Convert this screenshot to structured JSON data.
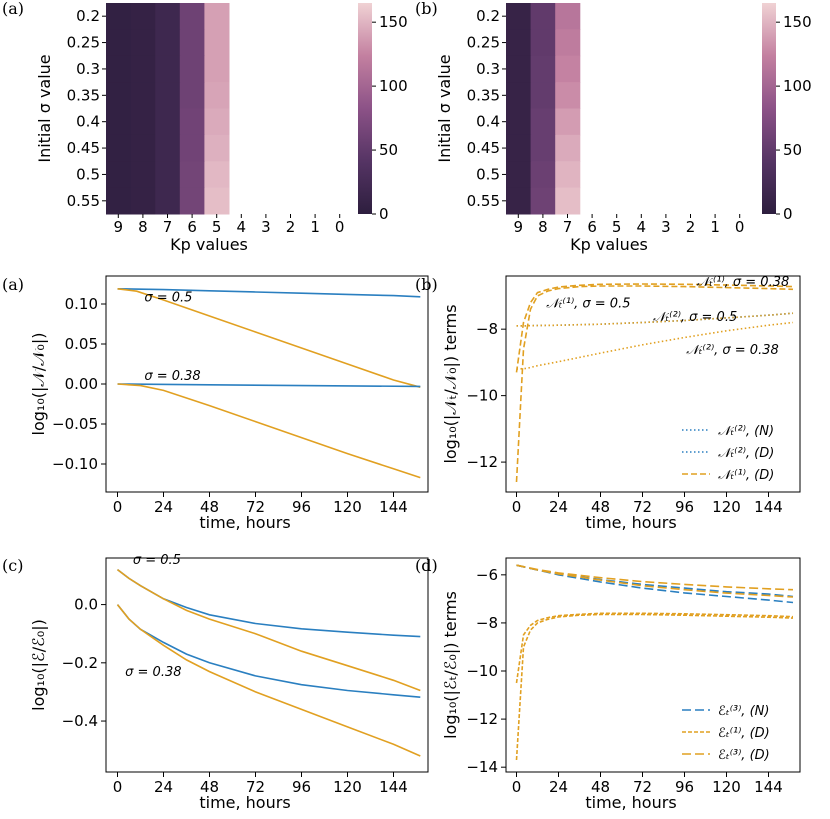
{
  "colors": {
    "blue": "#2a7fc0",
    "orange": "#e1a021"
  },
  "chart_data": [
    {
      "id": "ha",
      "type": "heatmap",
      "panel_label": "(a)",
      "xlabel": "Kp values",
      "ylabel": "Initial σ value",
      "x_categories": [
        "9",
        "8",
        "7",
        "6",
        "5",
        "4",
        "3",
        "2",
        "1",
        "0"
      ],
      "y_categories": [
        "0.2",
        "0.25",
        "0.3",
        "0.35",
        "0.4",
        "0.45",
        "0.5",
        "0.55"
      ],
      "values": [
        [
          5,
          8,
          18,
          60,
          140,
          null,
          null,
          null,
          null,
          null
        ],
        [
          5,
          8,
          18,
          60,
          140,
          null,
          null,
          null,
          null,
          null
        ],
        [
          5,
          8,
          18,
          60,
          140,
          null,
          null,
          null,
          null,
          null
        ],
        [
          5,
          8,
          18,
          60,
          142,
          null,
          null,
          null,
          null,
          null
        ],
        [
          5,
          8,
          18,
          62,
          145,
          null,
          null,
          null,
          null,
          null
        ],
        [
          5,
          8,
          18,
          62,
          148,
          null,
          null,
          null,
          null,
          null
        ],
        [
          5,
          8,
          18,
          64,
          152,
          null,
          null,
          null,
          null,
          null
        ],
        [
          5,
          8,
          18,
          64,
          155,
          null,
          null,
          null,
          null,
          null
        ]
      ],
      "colorbar_ticks": [
        "0",
        "50",
        "100",
        "150"
      ],
      "vmin": 0,
      "vmax": 165
    },
    {
      "id": "hb",
      "type": "heatmap",
      "panel_label": "(b)",
      "xlabel": "Kp values",
      "ylabel": "Initial σ value",
      "x_categories": [
        "9",
        "8",
        "7",
        "6",
        "5",
        "4",
        "3",
        "2",
        "1",
        "0"
      ],
      "y_categories": [
        "0.2",
        "0.25",
        "0.3",
        "0.35",
        "0.4",
        "0.45",
        "0.5",
        "0.55"
      ],
      "values": [
        [
          10,
          50,
          115,
          null,
          null,
          null,
          null,
          null,
          null,
          null
        ],
        [
          10,
          50,
          120,
          null,
          null,
          null,
          null,
          null,
          null,
          null
        ],
        [
          10,
          52,
          125,
          null,
          null,
          null,
          null,
          null,
          null,
          null
        ],
        [
          10,
          52,
          130,
          null,
          null,
          null,
          null,
          null,
          null,
          null
        ],
        [
          10,
          55,
          138,
          null,
          null,
          null,
          null,
          null,
          null,
          null
        ],
        [
          10,
          55,
          145,
          null,
          null,
          null,
          null,
          null,
          null,
          null
        ],
        [
          10,
          58,
          150,
          null,
          null,
          null,
          null,
          null,
          null,
          null
        ],
        [
          10,
          60,
          155,
          null,
          null,
          null,
          null,
          null,
          null,
          null
        ]
      ],
      "colorbar_ticks": [
        "0",
        "50",
        "100",
        "150"
      ],
      "vmin": 0,
      "vmax": 165
    },
    {
      "id": "la",
      "type": "line",
      "panel_label": "(a)",
      "xlabel": "time, hours",
      "ylabel": "log₁₀(|𝒩/𝒩₀|)",
      "xlim": [
        -6,
        162
      ],
      "ylim": [
        -0.135,
        0.135
      ],
      "xticks": [
        0,
        24,
        48,
        72,
        96,
        120,
        144
      ],
      "yticks": [
        0.1,
        0.05,
        0.0,
        -0.05,
        -0.1
      ],
      "ytick_labels": [
        "0.10",
        "0.05",
        "0.00",
        "−0.05",
        "−0.10"
      ],
      "annotations": [
        {
          "text": "σ = 0.5",
          "x": 14,
          "y": 0.103
        },
        {
          "text": "σ = 0.38",
          "x": 14,
          "y": 0.005
        }
      ],
      "series": [
        {
          "name": "blue σ=0.5",
          "color": "blue",
          "dash": "",
          "x": [
            0,
            24,
            48,
            72,
            96,
            120,
            144,
            158
          ],
          "y": [
            0.119,
            0.118,
            0.1165,
            0.115,
            0.1135,
            0.112,
            0.1105,
            0.109
          ]
        },
        {
          "name": "orange σ=0.5",
          "color": "orange",
          "dash": "",
          "x": [
            0,
            10,
            24,
            48,
            72,
            96,
            120,
            144,
            158
          ],
          "y": [
            0.119,
            0.116,
            0.105,
            0.085,
            0.065,
            0.045,
            0.025,
            0.005,
            -0.004
          ]
        },
        {
          "name": "blue σ=0.38",
          "color": "blue",
          "dash": "",
          "x": [
            0,
            48,
            96,
            158
          ],
          "y": [
            0.0,
            -0.001,
            -0.002,
            -0.003
          ]
        },
        {
          "name": "orange σ=0.38",
          "color": "orange",
          "dash": "",
          "x": [
            0,
            12,
            24,
            48,
            72,
            96,
            120,
            144,
            158
          ],
          "y": [
            0.0,
            -0.002,
            -0.008,
            -0.027,
            -0.047,
            -0.067,
            -0.087,
            -0.106,
            -0.117
          ]
        }
      ]
    },
    {
      "id": "lb",
      "type": "line",
      "panel_label": "(b)",
      "xlabel": "time, hours",
      "ylabel": "log₁₀(|𝒩ₜ/𝒩₀|) terms",
      "xlim": [
        -6,
        162
      ],
      "ylim": [
        -12.9,
        -6.4
      ],
      "xticks": [
        0,
        24,
        48,
        72,
        96,
        120,
        144
      ],
      "yticks": [
        -8,
        -10,
        -12
      ],
      "ytick_labels": [
        "−8",
        "−10",
        "−12"
      ],
      "annotations": [
        {
          "text": "𝒩ₜ⁽¹⁾, σ = 0.38",
          "x": 103,
          "y": -6.7
        },
        {
          "text": "𝒩ₜ⁽¹⁾, σ = 0.5",
          "x": 17,
          "y": -7.35
        },
        {
          "text": "𝒩ₜ⁽²⁾, σ = 0.5",
          "x": 78,
          "y": -7.75
        },
        {
          "text": "𝒩ₜ⁽²⁾, σ = 0.38",
          "x": 97,
          "y": -8.75
        }
      ],
      "legend": {
        "position": "lower right",
        "entries": [
          {
            "label": "𝒩ₜ⁽²⁾, (N)",
            "color": "blue",
            "dash": "1.5,2.5"
          },
          {
            "label": "𝒩ₜ⁽²⁾, (D)",
            "color": "blue",
            "dash": "1.5,2.5"
          },
          {
            "label": "𝒩ₜ⁽¹⁾, (D)",
            "color": "orange",
            "dash": "6,3"
          }
        ]
      },
      "series": [
        {
          "name": "N2 σ=0.5 blue",
          "color": "blue",
          "dash": "1.5,2.5",
          "x": [
            0,
            6,
            12,
            24,
            48,
            72,
            96,
            120,
            144,
            158
          ],
          "y": [
            -7.9,
            -7.9,
            -7.89,
            -7.88,
            -7.85,
            -7.8,
            -7.74,
            -7.66,
            -7.58,
            -7.52
          ]
        },
        {
          "name": "N2 σ=0.5 orange",
          "color": "orange",
          "dash": "1.5,2.5",
          "x": [
            0,
            6,
            12,
            24,
            48,
            72,
            96,
            120,
            144,
            158
          ],
          "y": [
            -7.9,
            -7.9,
            -7.89,
            -7.88,
            -7.85,
            -7.8,
            -7.74,
            -7.66,
            -7.58,
            -7.52
          ]
        },
        {
          "name": "N2 σ=0.38",
          "color": "orange",
          "dash": "1.5,2.5",
          "x": [
            0,
            6,
            12,
            24,
            48,
            72,
            96,
            120,
            144,
            158
          ],
          "y": [
            -9.2,
            -9.18,
            -9.1,
            -8.98,
            -8.72,
            -8.47,
            -8.25,
            -8.05,
            -7.88,
            -7.8
          ]
        },
        {
          "name": "N1 σ=0.5",
          "color": "orange",
          "dash": "6,3",
          "x": [
            0,
            4,
            8,
            12,
            18,
            24,
            36,
            48,
            72,
            96,
            120,
            144,
            158
          ],
          "y": [
            -12.6,
            -8.6,
            -7.4,
            -7.0,
            -6.85,
            -6.78,
            -6.72,
            -6.7,
            -6.7,
            -6.72,
            -6.75,
            -6.78,
            -6.8
          ]
        },
        {
          "name": "N1 σ=0.38",
          "color": "orange",
          "dash": "6,3",
          "x": [
            0,
            4,
            8,
            12,
            18,
            24,
            36,
            48,
            72,
            96,
            120,
            144,
            158
          ],
          "y": [
            -9.3,
            -7.8,
            -7.2,
            -6.9,
            -6.8,
            -6.73,
            -6.68,
            -6.65,
            -6.64,
            -6.65,
            -6.67,
            -6.7,
            -6.72
          ]
        }
      ]
    },
    {
      "id": "lc",
      "type": "line",
      "panel_label": "(c)",
      "xlabel": "time, hours",
      "ylabel": "log₁₀(|ℰ/ℰ₀|)",
      "xlim": [
        -6,
        162
      ],
      "ylim": [
        -0.575,
        0.16
      ],
      "xticks": [
        0,
        24,
        48,
        72,
        96,
        120,
        144
      ],
      "yticks": [
        0.0,
        -0.2,
        -0.4
      ],
      "ytick_labels": [
        "0.0",
        "−0.2",
        "−0.4"
      ],
      "annotations": [
        {
          "text": "σ = 0.5",
          "x": 8,
          "y": 0.14
        },
        {
          "text": "σ = 0.38",
          "x": 4,
          "y": -0.245
        }
      ],
      "series": [
        {
          "name": "blue σ=0.5",
          "color": "blue",
          "dash": "",
          "x": [
            0,
            6,
            12,
            24,
            36,
            48,
            72,
            96,
            120,
            144,
            158
          ],
          "y": [
            0.12,
            0.09,
            0.065,
            0.02,
            -0.01,
            -0.035,
            -0.065,
            -0.083,
            -0.095,
            -0.105,
            -0.11
          ]
        },
        {
          "name": "orange σ=0.5",
          "color": "orange",
          "dash": "",
          "x": [
            0,
            6,
            12,
            24,
            36,
            48,
            72,
            96,
            120,
            144,
            158
          ],
          "y": [
            0.12,
            0.09,
            0.065,
            0.02,
            -0.02,
            -0.05,
            -0.1,
            -0.16,
            -0.21,
            -0.26,
            -0.295
          ]
        },
        {
          "name": "blue σ=0.38",
          "color": "blue",
          "dash": "",
          "x": [
            0,
            6,
            12,
            24,
            36,
            48,
            72,
            96,
            120,
            144,
            158
          ],
          "y": [
            0.0,
            -0.05,
            -0.085,
            -0.13,
            -0.17,
            -0.2,
            -0.245,
            -0.275,
            -0.295,
            -0.31,
            -0.318
          ]
        },
        {
          "name": "orange σ=0.38",
          "color": "orange",
          "dash": "",
          "x": [
            0,
            6,
            12,
            24,
            36,
            48,
            72,
            96,
            120,
            144,
            158
          ],
          "y": [
            0.0,
            -0.05,
            -0.085,
            -0.14,
            -0.19,
            -0.23,
            -0.3,
            -0.36,
            -0.42,
            -0.48,
            -0.52
          ]
        }
      ]
    },
    {
      "id": "ld",
      "type": "line",
      "panel_label": "(d)",
      "xlabel": "time, hours",
      "ylabel": "log₁₀(|ℰₜ/ℰ₀|) terms",
      "xlim": [
        -6,
        162
      ],
      "ylim": [
        -14.2,
        -5.3
      ],
      "xticks": [
        0,
        24,
        48,
        72,
        96,
        120,
        144
      ],
      "yticks": [
        -6,
        -8,
        -10,
        -12,
        -14
      ],
      "ytick_labels": [
        "−6",
        "−8",
        "−10",
        "−12",
        "−14"
      ],
      "legend": {
        "position": "lower right",
        "entries": [
          {
            "label": "ℰₜ⁽³⁾, (N)",
            "color": "blue",
            "dash": "9,4"
          },
          {
            "label": "ℰₜ⁽¹⁾, (D)",
            "color": "orange",
            "dash": "4,2"
          },
          {
            "label": "ℰₜ⁽³⁾, (D)",
            "color": "orange",
            "dash": "9,4"
          }
        ]
      },
      "series": [
        {
          "name": "E3 N a",
          "color": "blue",
          "dash": "9,4",
          "x": [
            0,
            12,
            24,
            48,
            72,
            96,
            120,
            144,
            158
          ],
          "y": [
            -5.6,
            -5.8,
            -6.0,
            -6.3,
            -6.55,
            -6.75,
            -6.9,
            -7.05,
            -7.15
          ]
        },
        {
          "name": "E3 N b",
          "color": "blue",
          "dash": "9,4",
          "x": [
            0,
            12,
            24,
            48,
            72,
            96,
            120,
            144,
            158
          ],
          "y": [
            -5.6,
            -5.8,
            -5.95,
            -6.2,
            -6.4,
            -6.55,
            -6.7,
            -6.8,
            -6.9
          ]
        },
        {
          "name": "E3 D a",
          "color": "orange",
          "dash": "9,4",
          "x": [
            0,
            12,
            24,
            48,
            72,
            96,
            120,
            144,
            158
          ],
          "y": [
            -5.6,
            -5.78,
            -5.92,
            -6.12,
            -6.28,
            -6.4,
            -6.5,
            -6.58,
            -6.62
          ]
        },
        {
          "name": "E3 D b",
          "color": "orange",
          "dash": "9,4",
          "x": [
            0,
            12,
            24,
            48,
            72,
            96,
            120,
            144,
            158
          ],
          "y": [
            -5.6,
            -5.8,
            -5.96,
            -6.22,
            -6.45,
            -6.62,
            -6.76,
            -6.86,
            -6.92
          ]
        },
        {
          "name": "E1 D a",
          "color": "orange",
          "dash": "4,2",
          "x": [
            0,
            4,
            8,
            12,
            18,
            24,
            36,
            48,
            72,
            96,
            120,
            144,
            158
          ],
          "y": [
            -13.7,
            -9.0,
            -8.3,
            -8.0,
            -7.85,
            -7.75,
            -7.68,
            -7.65,
            -7.65,
            -7.68,
            -7.72,
            -7.76,
            -7.8
          ]
        },
        {
          "name": "E1 D b",
          "color": "orange",
          "dash": "4,2",
          "x": [
            0,
            4,
            8,
            12,
            18,
            24,
            36,
            48,
            72,
            96,
            120,
            144,
            158
          ],
          "y": [
            -10.5,
            -8.5,
            -8.1,
            -7.9,
            -7.78,
            -7.7,
            -7.64,
            -7.6,
            -7.6,
            -7.62,
            -7.66,
            -7.7,
            -7.74
          ]
        }
      ]
    }
  ]
}
